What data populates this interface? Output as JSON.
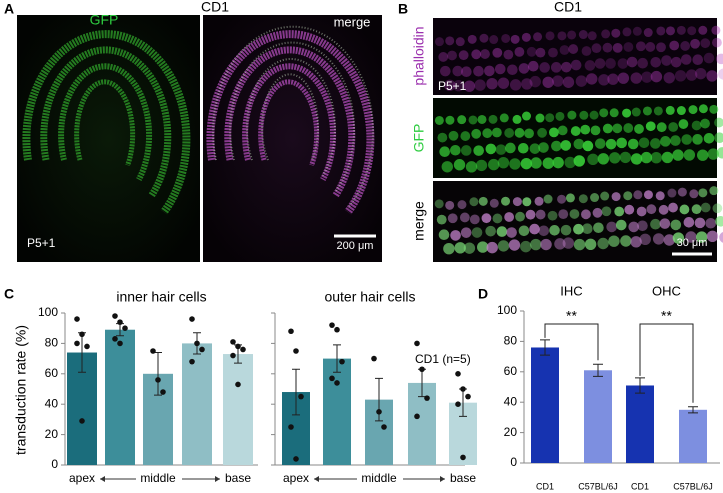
{
  "panel_labels": [
    "A",
    "B",
    "C",
    "D"
  ],
  "panel_a": {
    "title": "CD1",
    "left_label": "GFP",
    "right_label": "merge",
    "age": "P5+1",
    "scale_bar": "200 μm"
  },
  "panel_b": {
    "title": "CD1",
    "rows": [
      "phalloidin",
      "GFP",
      "merge"
    ],
    "age": "P5+1",
    "scale_bar": "30 μm"
  },
  "y_label": "transduction rate (%)",
  "chart_data": [
    {
      "type": "bar",
      "title": "inner hair cells",
      "categories": [
        "apex",
        null,
        "middle",
        null,
        "base"
      ],
      "values": [
        74,
        89,
        60,
        80,
        73
      ],
      "errors": [
        13,
        4,
        14,
        7,
        6
      ],
      "points": [
        [
          96,
          86,
          78,
          80,
          29
        ],
        [
          98,
          94,
          90,
          83,
          80
        ],
        [
          75,
          56,
          48
        ],
        [
          96,
          80,
          76,
          68
        ],
        [
          81,
          78,
          76,
          72,
          53
        ]
      ],
      "colors": [
        "#1b6d7c",
        "#3d8e9a",
        "#69a6b0",
        "#8fbec5",
        "#b9d8dc"
      ],
      "ylim": [
        0,
        100
      ],
      "yticks": [
        0,
        20,
        40,
        60,
        80,
        100
      ],
      "tick_labels": true
    },
    {
      "type": "bar",
      "title": "outer hair cells",
      "legend": "CD1 (n=5)",
      "categories": [
        "apex",
        null,
        "middle",
        null,
        "base"
      ],
      "values": [
        48,
        70,
        43,
        54,
        41
      ],
      "errors": [
        15,
        9,
        14,
        9,
        9
      ],
      "points": [
        [
          88,
          75,
          45,
          25,
          4
        ],
        [
          92,
          89,
          68,
          57,
          54
        ],
        [
          70,
          35,
          25
        ],
        [
          80,
          63,
          44,
          32
        ],
        [
          60,
          50,
          45,
          40,
          5
        ]
      ],
      "colors": [
        "#1b6d7c",
        "#3d8e9a",
        "#69a6b0",
        "#8fbec5",
        "#b9d8dc"
      ],
      "ylim": [
        0,
        100
      ],
      "yticks": [
        0,
        20,
        40,
        60,
        80,
        100
      ],
      "tick_labels": false
    },
    {
      "type": "grouped_bar",
      "categories": [
        "IHC",
        "OHC"
      ],
      "series": [
        {
          "name": "CD1",
          "color": "#1633b0",
          "values": [
            76,
            51
          ],
          "errors": [
            5,
            5
          ]
        },
        {
          "name": "C57BL/6J",
          "color": "#7d8fe0",
          "values": [
            61,
            35
          ],
          "errors": [
            4,
            2
          ]
        }
      ],
      "significance": [
        "**",
        "**"
      ],
      "ylim": [
        0,
        100
      ],
      "yticks": [
        0,
        20,
        40,
        60,
        80,
        100
      ],
      "tick_labels": true
    }
  ]
}
